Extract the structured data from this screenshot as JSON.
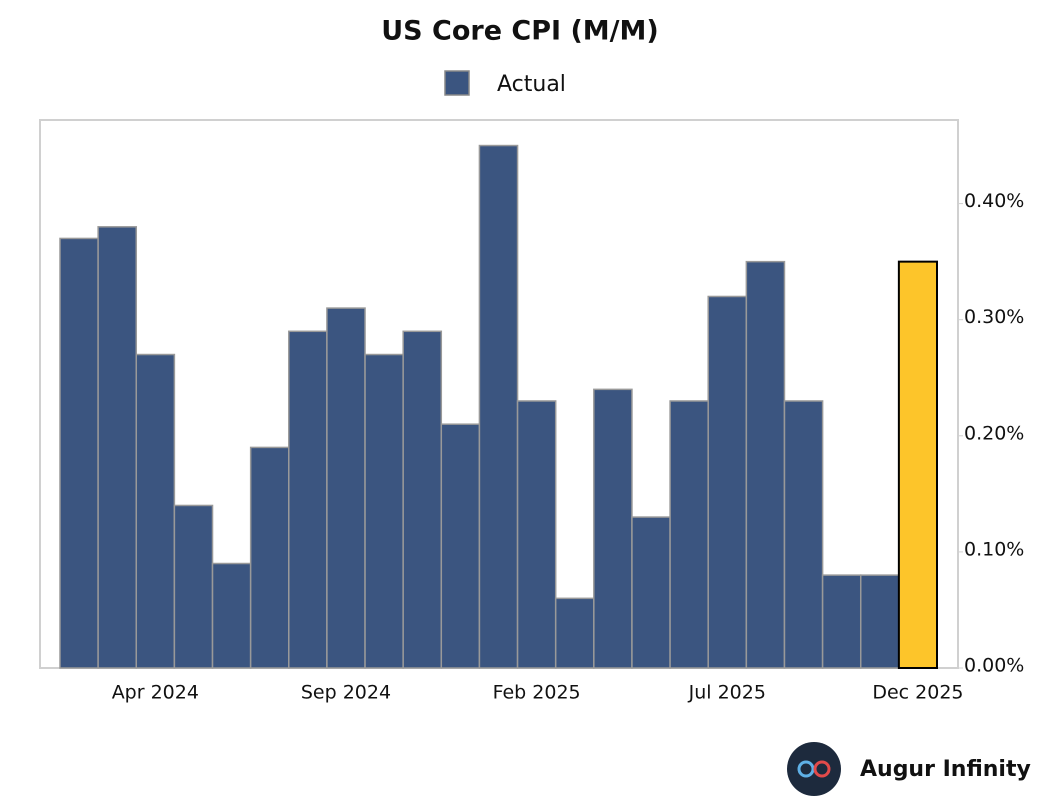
{
  "chart_data": {
    "type": "bar",
    "title": "US Core CPI (M/M)",
    "categories": [
      null,
      null,
      "Apr 2024",
      null,
      null,
      null,
      null,
      "Sep 2024",
      null,
      null,
      null,
      null,
      "Feb 2025",
      null,
      null,
      null,
      null,
      "Jul 2025",
      null,
      null,
      null,
      null,
      "Dec 2025"
    ],
    "series": [
      {
        "name": "Actual",
        "color": "#3b5580",
        "colors": [
          "#3b5580",
          "#3b5580",
          "#3b5580",
          "#3b5580",
          "#3b5580",
          "#3b5580",
          "#3b5580",
          "#3b5580",
          "#3b5580",
          "#3b5580",
          "#3b5580",
          "#3b5580",
          "#3b5580",
          "#3b5580",
          "#3b5580",
          "#3b5580",
          "#3b5580",
          "#3b5580",
          "#3b5580",
          "#3b5580",
          "#3b5580",
          "#3b5580",
          "#fdc52a"
        ],
        "values": [
          0.37,
          0.38,
          0.27,
          0.14,
          0.09,
          0.19,
          0.29,
          0.31,
          0.27,
          0.29,
          0.21,
          0.45,
          0.23,
          0.06,
          0.24,
          0.13,
          0.23,
          0.32,
          0.35,
          0.23,
          0.08,
          0.08,
          0.35
        ]
      }
    ],
    "ylim": [
      0,
      0.472
    ],
    "yticks": [
      {
        "value": 0,
        "label": "0.00%"
      },
      {
        "value": 0.1,
        "label": "0.10%"
      },
      {
        "value": 0.2,
        "label": "0.20%"
      },
      {
        "value": 0.3,
        "label": "0.30%"
      },
      {
        "value": 0.4,
        "label": "0.40%"
      }
    ],
    "y_axis_side": "right",
    "grid": false,
    "legend": "top",
    "brand": "Augur Infinity"
  }
}
